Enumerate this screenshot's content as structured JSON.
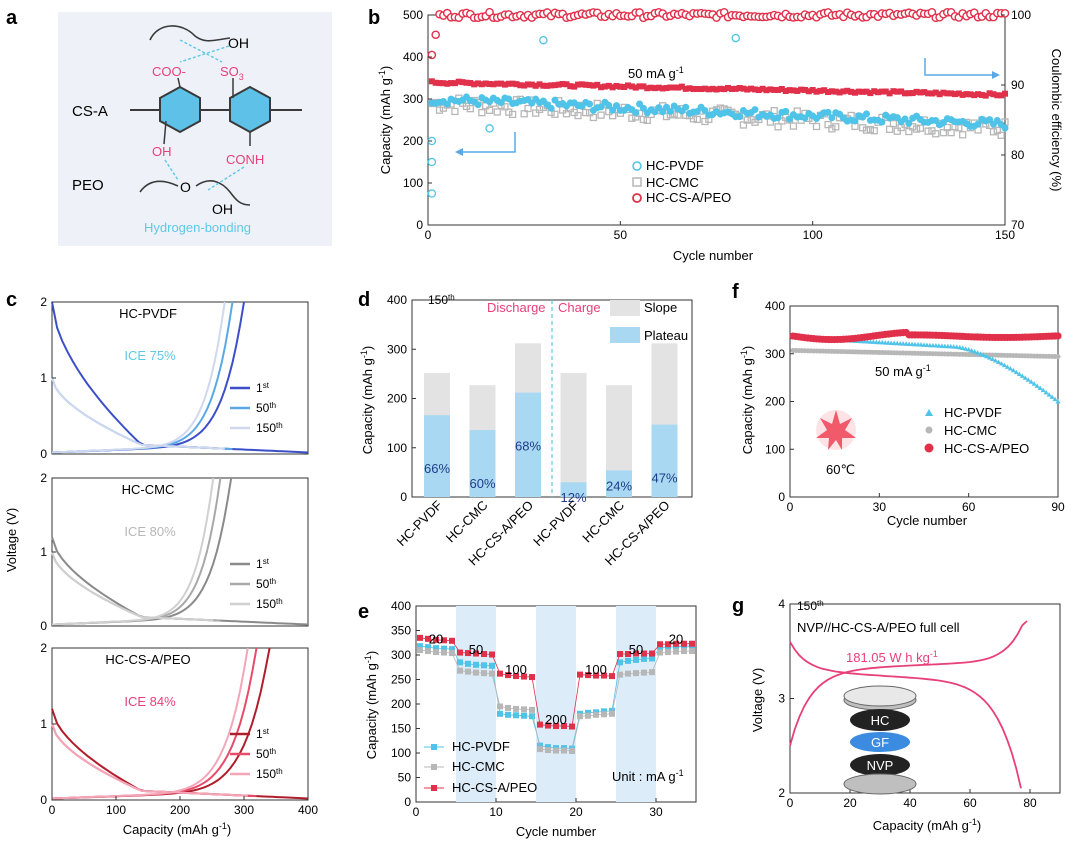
{
  "colors": {
    "pvdf": "#4fc3e8",
    "cmc": "#b7b7b7",
    "cs": "#e0304a",
    "c1": "#3b4fc8",
    "c50": "#5aa9e6",
    "c150": "#cfd8ee",
    "cmc1": "#8a8a8a",
    "cmc50": "#a8a8a8",
    "cmc150": "#d0d0d0",
    "cs1": "#b01e2c",
    "cs50": "#e84a6a",
    "cs150": "#f4a6b8",
    "pink": "#e8407a",
    "lightblue": "#5ec8e8",
    "shade": "#dcecf8",
    "slope": "#e3e3e3",
    "plateau": "#a9d9f2"
  },
  "chart_data": [
    {
      "panel": "a",
      "type": "diagram",
      "labels": {
        "cs_a": "CS-A",
        "peo": "PEO",
        "oh_top": "OH",
        "coo": "COO-",
        "so3": "SO",
        "so3_sub": "3",
        "oh_left": "OH",
        "conh": "CONH",
        "o_peo": "O",
        "oh_bottom": "OH",
        "hbond": "Hydrogen-bonding"
      }
    },
    {
      "panel": "b",
      "type": "scatter",
      "xlabel": "Cycle number",
      "ylabel": "Capacity (mAh g",
      "ylabel_sup": "-1",
      "ylabel_end": ")",
      "y2label": "Coulombic efficiency (%)",
      "xlim": [
        0,
        150
      ],
      "ylim": [
        0,
        500
      ],
      "y2lim": [
        70,
        100
      ],
      "xticks": [
        "0",
        "50",
        "100",
        "150"
      ],
      "yticks": [
        "0",
        "100",
        "200",
        "300",
        "400",
        "500"
      ],
      "y2ticks": [
        "70",
        "80",
        "90",
        "100"
      ],
      "annotation": "50 mA g",
      "annotation_sup": "-1",
      "legend": [
        "HC-PVDF",
        "HC-CMC",
        "HC-CS-A/PEO"
      ],
      "series": [
        {
          "name": "HC-PVDF",
          "capacity_start": 300,
          "capacity_end": 240
        },
        {
          "name": "HC-CMC",
          "capacity_start": 290,
          "capacity_end": 230
        },
        {
          "name": "HC-CS-A/PEO",
          "capacity_start": 340,
          "capacity_end": 310
        }
      ],
      "ce_percent": 100,
      "arrows": {
        "left": "capacity axis",
        "right": "efficiency axis"
      }
    },
    {
      "panel": "c",
      "type": "line",
      "xlabel": "Capacity (mAh g",
      "xlabel_sup": "-1",
      "xlabel_end": ")",
      "ylabel": "Voltage (V)",
      "xlim": [
        0,
        400
      ],
      "ylim": [
        0,
        2
      ],
      "xticks": [
        "0",
        "100",
        "200",
        "300",
        "400"
      ],
      "yticks": [
        "0",
        "1",
        "2"
      ],
      "subplots": [
        {
          "title": "HC-PVDF",
          "ice": "ICE 75%",
          "legend": [
            "1",
            "50",
            "150"
          ],
          "legend_sup": [
            "st",
            "th",
            "th"
          ],
          "cap_end": 300
        },
        {
          "title": "HC-CMC",
          "ice": "ICE 80%",
          "legend": [
            "1",
            "50",
            "150"
          ],
          "legend_sup": [
            "st",
            "th",
            "th"
          ],
          "cap_end": 280
        },
        {
          "title": "HC-CS-A/PEO",
          "ice": "ICE 84%",
          "legend": [
            "1",
            "50",
            "150"
          ],
          "legend_sup": [
            "st",
            "th",
            "th"
          ],
          "cap_end": 340
        }
      ]
    },
    {
      "panel": "d",
      "type": "bar",
      "ylabel": "Capacity (mAh g",
      "ylabel_sup": "-1",
      "ylabel_end": ")",
      "ylim": [
        0,
        400
      ],
      "yticks": [
        "0",
        "100",
        "200",
        "300",
        "400"
      ],
      "cycle_label": "150",
      "cycle_sup": "th",
      "discharge": "Discharge",
      "charge": "Charge",
      "legend": [
        "Slope",
        "Plateau"
      ],
      "categories": [
        "HC-PVDF",
        "HC-CMC",
        "HC-CS-A/PEO",
        "HC-PVDF",
        "HC-CMC",
        "HC-CS-A/PEO"
      ],
      "totals": [
        252,
        227,
        312,
        252,
        227,
        312
      ],
      "plateau": [
        166,
        136,
        212,
        30,
        54,
        147
      ],
      "pct_labels": [
        "66%",
        "60%",
        "68%",
        "12%",
        "24%",
        "47%"
      ]
    },
    {
      "panel": "e",
      "type": "scatter",
      "xlabel": "Cycle number",
      "ylabel": "Capacity (mAh g",
      "ylabel_sup": "-1",
      "ylabel_end": ")",
      "xlim": [
        0,
        35
      ],
      "ylim": [
        0,
        400
      ],
      "xticks": [
        "0",
        "10",
        "20",
        "30"
      ],
      "yticks": [
        "0",
        "50",
        "100",
        "150",
        "200",
        "250",
        "300",
        "350",
        "400"
      ],
      "rates": [
        "20",
        "50",
        "100",
        "200",
        "100",
        "50",
        "20"
      ],
      "unit": "Unit : mA g",
      "unit_sup": "-1",
      "legend": [
        "HC-PVDF",
        "HC-CMC",
        "HC-CS-A/PEO"
      ],
      "series": [
        {
          "name": "HC-PVDF",
          "values": [
            318,
            316,
            314,
            313,
            312,
            285,
            282,
            280,
            279,
            278,
            180,
            178,
            177,
            176,
            175,
            115,
            112,
            110,
            110,
            109,
            180,
            182,
            183,
            185,
            186,
            285,
            288,
            290,
            292,
            293,
            315,
            316,
            317,
            318,
            318
          ]
        },
        {
          "name": "HC-CMC",
          "values": [
            310,
            308,
            306,
            305,
            304,
            268,
            266,
            264,
            263,
            262,
            195,
            192,
            190,
            189,
            188,
            108,
            106,
            105,
            105,
            104,
            175,
            176,
            178,
            179,
            180,
            260,
            262,
            263,
            264,
            265,
            305,
            306,
            307,
            308,
            308
          ]
        },
        {
          "name": "HC-CS-A/PEO",
          "values": [
            335,
            333,
            331,
            330,
            329,
            305,
            304,
            303,
            302,
            301,
            262,
            259,
            257,
            256,
            255,
            158,
            156,
            155,
            155,
            154,
            260,
            259,
            258,
            258,
            257,
            302,
            302,
            303,
            303,
            303,
            322,
            322,
            323,
            323,
            323
          ]
        }
      ]
    },
    {
      "panel": "f",
      "type": "scatter",
      "xlabel": "Cycle number",
      "ylabel": "Capacity (mAh g",
      "ylabel_sup": "-1",
      "ylabel_end": ")",
      "xlim": [
        0,
        90
      ],
      "ylim": [
        0,
        400
      ],
      "xticks": [
        "0",
        "30",
        "60",
        "90"
      ],
      "yticks": [
        "0",
        "100",
        "200",
        "300",
        "400"
      ],
      "annotation": "50 mA g",
      "annotation_sup": "-1",
      "temp": "60℃",
      "legend": [
        "HC-PVDF",
        "HC-CMC",
        "HC-CS-A/PEO"
      ],
      "series": [
        {
          "name": "HC-PVDF",
          "start": 335,
          "knee_cycle": 55,
          "end": 200
        },
        {
          "name": "HC-CMC",
          "start": 307,
          "end": 294
        },
        {
          "name": "HC-CS-A/PEO",
          "start": 338,
          "end": 336
        }
      ]
    },
    {
      "panel": "g",
      "type": "line",
      "xlabel": "Capacity (mAh g",
      "xlabel_sup": "-1",
      "xlabel_end": ")",
      "ylabel": "Voltage (V)",
      "xlim": [
        0,
        90
      ],
      "ylim": [
        2,
        4
      ],
      "xticks": [
        "0",
        "20",
        "40",
        "60",
        "80"
      ],
      "yticks": [
        "2",
        "3",
        "4"
      ],
      "cycle_label": "150",
      "cycle_sup": "th",
      "cell": "NVP//HC-CS-A/PEO full cell",
      "energy": "181.05 W h kg",
      "energy_sup": "-1",
      "layers": [
        "HC",
        "GF",
        "NVP"
      ],
      "capacity_max": 77
    }
  ]
}
